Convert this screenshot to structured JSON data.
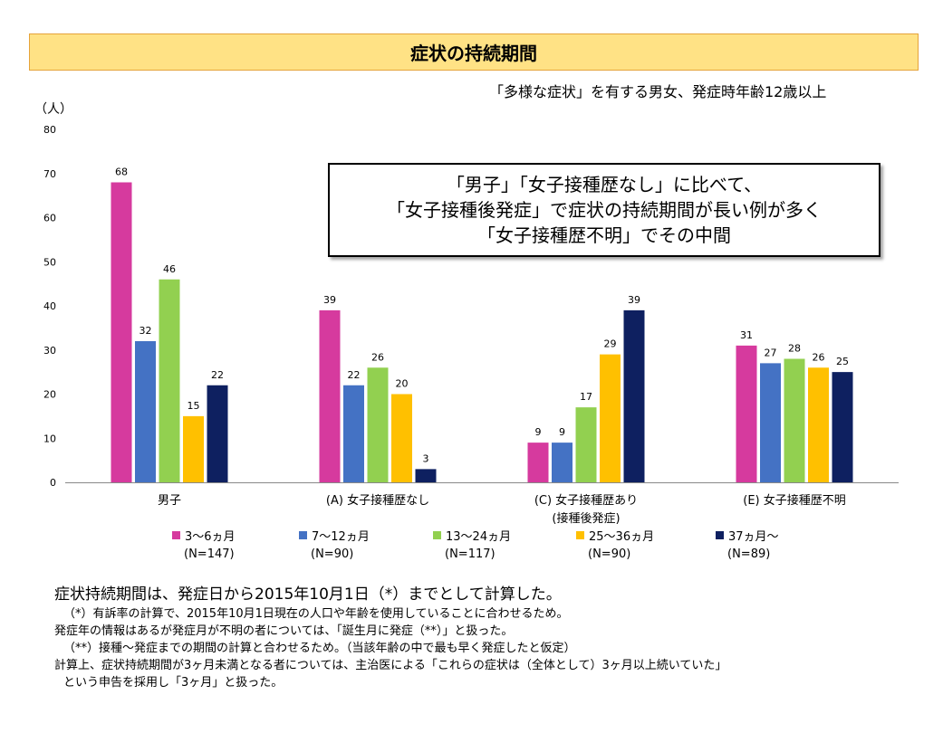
{
  "title": "症状の持続期間",
  "subtitle": "「多様な症状」を有する男女、発症時年齢12歳以上",
  "callout": [
    "「男子」「女子接種歴なし」に比べて、",
    "「女子接種後発症」で症状の持続期間が長い例が多く",
    "「女子接種歴不明」でその中間"
  ],
  "colors": {
    "s1": "#d63a9e",
    "s2": "#4472c4",
    "s3": "#92d050",
    "s4": "#ffc000",
    "s5": "#0e2060",
    "frame": "#e5a33a",
    "title_bg": "#ffe285"
  },
  "chart_data": {
    "type": "bar",
    "ylabel": "（人）",
    "ylim": [
      0,
      80
    ],
    "yticks": [
      "0",
      "10",
      "20",
      "30",
      "40",
      "50",
      "60",
      "70",
      "80"
    ],
    "categories": [
      "男子",
      "(A) 女子接種歴なし",
      "(C) 女子接種歴あり",
      "(E) 女子接種歴不明"
    ],
    "category_sublabels": [
      "",
      "",
      "(接種後発症)",
      ""
    ],
    "series": [
      {
        "name": "3〜6ヵ月",
        "n_label": "(N=147)",
        "values": [
          68,
          39,
          9,
          31
        ]
      },
      {
        "name": "7〜12ヵ月",
        "n_label": "(N=90)",
        "values": [
          32,
          22,
          9,
          27
        ]
      },
      {
        "name": "13〜24ヵ月",
        "n_label": "(N=117)",
        "values": [
          46,
          26,
          17,
          28
        ]
      },
      {
        "name": "25〜36ヵ月",
        "n_label": "(N=90)",
        "values": [
          15,
          20,
          29,
          26
        ]
      },
      {
        "name": "37ヵ月〜",
        "n_label": "(N=89)",
        "values": [
          22,
          3,
          39,
          25
        ]
      }
    ],
    "legend": "bottom",
    "grid": false
  },
  "notes": [
    "症状持続期間は、発症日から2015年10月1日（*）までとして計算した。",
    "（*）有訴率の計算で、2015年10月1日現在の人口や年齢を使用していることに合わせるため。",
    "発症年の情報はあるが発症月が不明の者については、「誕生月に発症（**）」と扱った。",
    "（**）接種〜発症までの期間の計算と合わせるため。（当該年齢の中で最も早く発症したと仮定）",
    "計算上、症状持続期間が3ヶ月未満となる者については、主治医による「これらの症状は（全体として）3ヶ月以上続いていた」",
    "という申告を採用し「3ヶ月」と扱った。"
  ]
}
